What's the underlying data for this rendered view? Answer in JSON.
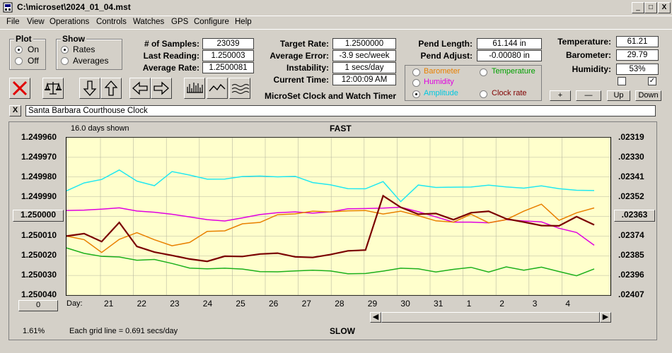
{
  "window": {
    "title": "C:\\microset\\2024_01_04.mst",
    "min_label": "_",
    "max_label": "□",
    "close_label": "X"
  },
  "menu": [
    "File",
    "View",
    "Operations",
    "Controls",
    "Watches",
    "GPS",
    "Configure",
    "Help"
  ],
  "plot_group": {
    "title": "Plot",
    "on": "On",
    "off": "Off",
    "selected": "On"
  },
  "show_group": {
    "title": "Show",
    "rates": "Rates",
    "averages": "Averages",
    "selected": "Rates"
  },
  "stats": {
    "samples_label": "# of Samples:",
    "samples": "23039",
    "last_label": "Last Reading:",
    "last": "1.250003",
    "avg_label": "Average Rate:",
    "avg": "1.2500081",
    "target_label": "Target Rate:",
    "target": "1.2500000",
    "err_label": "Average Error:",
    "err": "-3.9 sec/week",
    "instab_label": "Instability:",
    "instab": "1 secs/day",
    "time_label": "Current Time:",
    "time": "12:00:09 AM",
    "pend_len_label": "Pend Length:",
    "pend_len": "61.144 in",
    "pend_adj_label": "Pend Adjust:",
    "pend_adj": "-0.00080 in",
    "temp_label": "Temperature:",
    "temp": "61.21",
    "baro_label": "Barometer:",
    "baro": "29.79",
    "hum_label": "Humidity:",
    "hum": "53%"
  },
  "app_caption": "MicroSet Clock and Watch Timer",
  "series_options": [
    {
      "label": "Barometer",
      "color": "#e88000"
    },
    {
      "label": "Temperature",
      "color": "#00a000"
    },
    {
      "label": "Humidity",
      "color": "#e000e0"
    },
    {
      "label": "Amplitude",
      "color": "#00c8e0",
      "selected": true
    },
    {
      "label": "Clock rate",
      "color": "#800000"
    }
  ],
  "adjust_buttons": {
    "plus": "+",
    "minus": "—",
    "up": "Up",
    "down": "Down"
  },
  "clock_name": "Santa Barbara Courthouse Clock",
  "clear_btn": "X",
  "chart_header": {
    "days_shown": "16.0 days shown",
    "fast": "FAST",
    "slow": "SLOW",
    "grid_note": "Each grid line = 0.691 secs/day",
    "pct": "1.61%",
    "zero_btn": "0",
    "center_btn": "1.250000",
    "right_center_btn": ".02363",
    "day_label": "Day:"
  },
  "chart_data": {
    "type": "line",
    "left_axis": [
      "1.249960",
      "1.249970",
      "1.249980",
      "1.249990",
      "1.250000",
      "1.250010",
      "1.250020",
      "1.250030",
      "1.250040"
    ],
    "right_axis": [
      ".02319",
      ".02330",
      ".02341",
      ".02352",
      ".02363",
      ".02374",
      ".02385",
      ".02396",
      ".02407"
    ],
    "x_ticks": [
      "21",
      "22",
      "23",
      "24",
      "25",
      "26",
      "27",
      "28",
      "29",
      "30",
      "31",
      "1",
      "2",
      "3",
      "4"
    ],
    "series": [
      {
        "name": "Amplitude",
        "color": "#22e8f0",
        "values": [
          1.249987,
          1.249984,
          1.249982,
          1.249976,
          1.249981,
          1.249984,
          1.249978,
          1.24998,
          1.249981,
          1.24998,
          1.249979,
          1.24998,
          1.249981,
          1.24998,
          1.249982,
          1.249983,
          1.249986,
          1.249987,
          1.249983,
          1.249992,
          1.249983,
          1.249985,
          1.249986,
          1.249986,
          1.249984,
          1.249984,
          1.249985,
          1.249985,
          1.249987,
          1.249987,
          1.249986
        ]
      },
      {
        "name": "Humidity",
        "color": "#e000e0",
        "values": [
          1.249997,
          1.249997,
          1.249996,
          1.249996,
          1.249997,
          1.249998,
          1.249999,
          1.25,
          1.250002,
          1.250002,
          1.250001,
          1.249999,
          1.249998,
          1.249998,
          1.249998,
          1.249998,
          1.249996,
          1.249996,
          1.249996,
          1.249995,
          1.249998,
          1.25,
          1.250003,
          1.250003,
          1.250003,
          1.250002,
          1.250002,
          1.250003,
          1.250006,
          1.250008,
          1.250015
        ]
      },
      {
        "name": "Barometer",
        "color": "#e88000",
        "values": [
          1.25001,
          1.250012,
          1.250018,
          1.250012,
          1.250008,
          1.250012,
          1.250015,
          1.250013,
          1.250008,
          1.250007,
          1.250004,
          1.250003,
          1.249999,
          1.249999,
          1.249997,
          1.249998,
          1.249997,
          1.249997,
          1.249999,
          1.249997,
          1.25,
          1.250002,
          1.250003,
          1.249999,
          1.250003,
          1.250002,
          1.249997,
          1.249994,
          1.250002,
          1.249998,
          1.249996
        ]
      },
      {
        "name": "Temperature",
        "color": "#1cb01c",
        "values": [
          1.250016,
          1.250019,
          1.25002,
          1.250021,
          1.250022,
          1.250022,
          1.250024,
          1.250026,
          1.250027,
          1.250026,
          1.250027,
          1.250028,
          1.250028,
          1.250028,
          1.250027,
          1.250028,
          1.250029,
          1.250029,
          1.250028,
          1.250026,
          1.250027,
          1.250028,
          1.250027,
          1.250026,
          1.250028,
          1.250026,
          1.250027,
          1.250026,
          1.250028,
          1.25003,
          1.250027
        ]
      },
      {
        "name": "Clock rate",
        "color": "#7a0000",
        "values": [
          1.25001,
          1.250008,
          1.250012,
          1.250003,
          1.250016,
          1.250019,
          1.25002,
          1.250021,
          1.250022,
          1.25002,
          1.250021,
          1.25002,
          1.250019,
          1.25002,
          1.25002,
          1.250019,
          1.250018,
          1.250018,
          1.24999,
          1.249995,
          1.249998,
          1.249998,
          1.250002,
          1.249999,
          1.249998,
          1.250001,
          1.250002,
          1.250004,
          1.250005,
          1.250001,
          1.250005
        ]
      }
    ]
  }
}
